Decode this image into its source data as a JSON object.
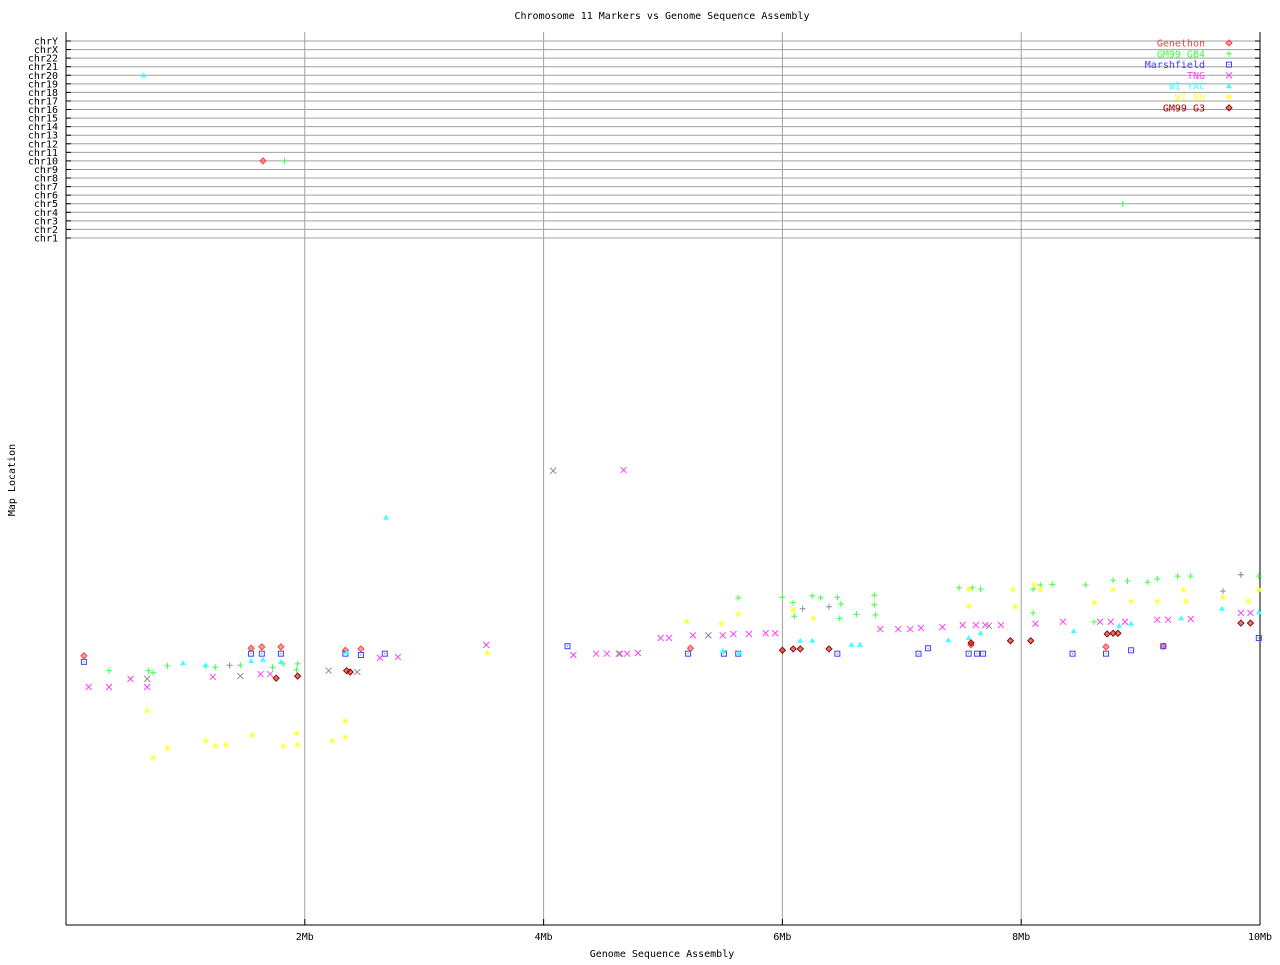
{
  "chart_data": {
    "type": "scatter",
    "title": "Chromosome 11 Markers vs Genome Sequence Assembly",
    "xlabel": "Genome Sequence Assembly",
    "ylabel": "Map Location",
    "xlim": [
      0,
      10
    ],
    "x_unit": "Mb",
    "x_ticks": [
      {
        "value": 2,
        "label": "2Mb"
      },
      {
        "value": 4,
        "label": "4Mb"
      },
      {
        "value": 6,
        "label": "6Mb"
      },
      {
        "value": 8,
        "label": "8Mb"
      },
      {
        "value": 10,
        "label": "10Mb"
      }
    ],
    "ylim": [
      0,
      100
    ],
    "chromosome_labels": [
      "chr1",
      "chr2",
      "chr3",
      "chr4",
      "chr5",
      "chr6",
      "chr7",
      "chr8",
      "chr9",
      "chr10",
      "chr11",
      "chr12",
      "chr13",
      "chr14",
      "chr15",
      "chr16",
      "chr17",
      "chr18",
      "chr19",
      "chr20",
      "chr21",
      "chr22",
      "chrX",
      "chrY"
    ],
    "grid": true,
    "legend_position": "top-right",
    "series": [
      {
        "name": "Genethon",
        "color": "#ff4040",
        "marker": "diamond",
        "points": [
          [
            0.15,
            39.6
          ],
          [
            1.55,
            40.7
          ],
          [
            1.64,
            40.9
          ],
          [
            1.8,
            40.9
          ],
          [
            2.34,
            40.4
          ],
          [
            2.47,
            40.6
          ],
          [
            5.23,
            40.7
          ],
          [
            7.58,
            41.2
          ],
          [
            8.71,
            40.9
          ],
          [
            9.19,
            41.0
          ]
        ],
        "other_chr": [
          [
            1.65,
            "chr10"
          ]
        ]
      },
      {
        "name": "GM99 GB4",
        "color": "#40ff40",
        "marker": "plus",
        "points": [
          [
            0.36,
            37.4
          ],
          [
            0.69,
            37.4
          ],
          [
            0.73,
            37.1
          ],
          [
            0.85,
            38.1
          ],
          [
            1.17,
            38.1
          ],
          [
            1.25,
            37.9
          ],
          [
            1.46,
            38.2
          ],
          [
            1.73,
            37.9
          ],
          [
            1.82,
            38.4
          ],
          [
            1.94,
            38.4
          ],
          [
            1.93,
            37.5
          ],
          [
            5.63,
            48.1
          ],
          [
            6.0,
            48.2
          ],
          [
            6.09,
            47.4
          ],
          [
            6.25,
            48.4
          ],
          [
            6.32,
            48.1
          ],
          [
            6.46,
            48.2
          ],
          [
            6.49,
            47.2
          ],
          [
            6.77,
            48.5
          ],
          [
            6.77,
            47.1
          ],
          [
            6.1,
            45.4
          ],
          [
            6.48,
            45.1
          ],
          [
            6.62,
            45.7
          ],
          [
            6.78,
            45.6
          ],
          [
            7.48,
            49.6
          ],
          [
            7.59,
            49.6
          ],
          [
            7.66,
            49.4
          ],
          [
            8.1,
            49.4
          ],
          [
            8.16,
            50.0
          ],
          [
            8.26,
            50.1
          ],
          [
            8.54,
            50.0
          ],
          [
            8.77,
            50.7
          ],
          [
            8.89,
            50.6
          ],
          [
            9.06,
            50.4
          ],
          [
            9.14,
            50.9
          ],
          [
            9.31,
            51.3
          ],
          [
            9.42,
            51.3
          ],
          [
            9.84,
            51.5
          ],
          [
            9.99,
            51.3
          ],
          [
            8.1,
            45.9
          ],
          [
            8.61,
            44.6
          ]
        ],
        "other_chr": [
          [
            1.83,
            "chr10"
          ],
          [
            8.85,
            "chr5"
          ]
        ]
      },
      {
        "name": "Marshfield",
        "color": "#4040ff",
        "marker": "square",
        "points": [
          [
            0.15,
            38.7
          ],
          [
            1.55,
            39.9
          ],
          [
            1.64,
            39.9
          ],
          [
            1.8,
            39.9
          ],
          [
            2.34,
            39.9
          ],
          [
            2.47,
            39.7
          ],
          [
            2.67,
            39.9
          ],
          [
            4.2,
            41.0
          ],
          [
            5.21,
            39.9
          ],
          [
            5.51,
            39.9
          ],
          [
            5.63,
            39.9
          ],
          [
            6.46,
            39.9
          ],
          [
            7.14,
            39.9
          ],
          [
            7.22,
            40.7
          ],
          [
            7.56,
            39.9
          ],
          [
            7.63,
            39.9
          ],
          [
            7.68,
            39.9
          ],
          [
            8.43,
            39.9
          ],
          [
            8.71,
            39.9
          ],
          [
            8.92,
            40.4
          ],
          [
            9.19,
            41.0
          ],
          [
            9.99,
            42.2
          ]
        ],
        "other_chr": []
      },
      {
        "name": "TNG",
        "color": "#ff40ff",
        "marker": "cross",
        "points": [
          [
            0.19,
            35.0
          ],
          [
            0.36,
            35.0
          ],
          [
            0.54,
            36.2
          ],
          [
            0.68,
            35.0
          ],
          [
            1.23,
            36.5
          ],
          [
            1.63,
            36.9
          ],
          [
            1.71,
            36.9
          ],
          [
            2.63,
            39.3
          ],
          [
            2.78,
            39.4
          ],
          [
            3.52,
            41.2
          ],
          [
            4.25,
            39.7
          ],
          [
            4.44,
            39.9
          ],
          [
            4.53,
            39.9
          ],
          [
            4.64,
            39.9
          ],
          [
            4.7,
            39.9
          ],
          [
            4.79,
            40.0
          ],
          [
            4.98,
            42.2
          ],
          [
            5.05,
            42.2
          ],
          [
            5.25,
            42.6
          ],
          [
            5.38,
            42.6
          ],
          [
            5.5,
            42.6
          ],
          [
            5.59,
            42.8
          ],
          [
            5.72,
            42.8
          ],
          [
            5.86,
            42.9
          ],
          [
            5.94,
            42.9
          ],
          [
            6.82,
            43.5
          ],
          [
            6.97,
            43.5
          ],
          [
            7.07,
            43.5
          ],
          [
            7.16,
            43.7
          ],
          [
            7.34,
            43.8
          ],
          [
            7.51,
            44.1
          ],
          [
            7.62,
            44.1
          ],
          [
            7.7,
            44.1
          ],
          [
            7.83,
            44.1
          ],
          [
            8.12,
            44.3
          ],
          [
            8.35,
            44.6
          ],
          [
            8.66,
            44.6
          ],
          [
            8.75,
            44.6
          ],
          [
            8.87,
            44.6
          ],
          [
            9.14,
            44.9
          ],
          [
            9.23,
            44.9
          ],
          [
            9.42,
            45.0
          ],
          [
            9.84,
            45.9
          ],
          [
            9.92,
            45.9
          ],
          [
            4.67,
            66.9
          ]
        ],
        "other_chr": []
      },
      {
        "name": "WI YAC",
        "color": "#40ffff",
        "marker": "triangle",
        "points": [
          [
            0.98,
            38.5
          ],
          [
            1.17,
            38.2
          ],
          [
            1.55,
            38.8
          ],
          [
            1.65,
            39.0
          ],
          [
            1.8,
            38.7
          ],
          [
            2.35,
            40.1
          ],
          [
            2.68,
            59.9
          ],
          [
            5.5,
            40.3
          ],
          [
            5.64,
            40.0
          ],
          [
            6.15,
            41.8
          ],
          [
            6.25,
            41.8
          ],
          [
            6.58,
            41.2
          ],
          [
            6.65,
            41.2
          ],
          [
            7.39,
            41.9
          ],
          [
            7.56,
            42.2
          ],
          [
            7.66,
            42.9
          ],
          [
            8.44,
            43.2
          ],
          [
            8.82,
            44.0
          ],
          [
            8.92,
            44.3
          ],
          [
            9.34,
            45.1
          ],
          [
            9.68,
            46.5
          ],
          [
            9.99,
            46.0
          ]
        ],
        "other_chr": [
          [
            0.65,
            "chr20"
          ]
        ]
      },
      {
        "name": "WI RH",
        "color": "#ffff40",
        "marker": "star",
        "points": [
          [
            0.68,
            31.5
          ],
          [
            0.73,
            24.6
          ],
          [
            0.85,
            26.0
          ],
          [
            1.17,
            27.1
          ],
          [
            1.25,
            26.3
          ],
          [
            1.34,
            26.5
          ],
          [
            1.56,
            27.9
          ],
          [
            1.82,
            26.3
          ],
          [
            1.93,
            28.2
          ],
          [
            1.94,
            26.5
          ],
          [
            2.23,
            27.1
          ],
          [
            2.34,
            30.0
          ],
          [
            2.34,
            27.6
          ],
          [
            3.53,
            40.0
          ],
          [
            5.2,
            44.6
          ],
          [
            5.49,
            44.3
          ],
          [
            5.63,
            45.7
          ],
          [
            6.09,
            46.3
          ],
          [
            6.26,
            45.1
          ],
          [
            7.56,
            49.4
          ],
          [
            7.56,
            46.9
          ],
          [
            7.93,
            49.3
          ],
          [
            7.95,
            46.8
          ],
          [
            8.11,
            50.0
          ],
          [
            8.16,
            49.3
          ],
          [
            8.61,
            47.4
          ],
          [
            8.77,
            49.3
          ],
          [
            8.92,
            47.6
          ],
          [
            9.14,
            47.6
          ],
          [
            9.36,
            49.3
          ],
          [
            9.38,
            47.6
          ],
          [
            9.69,
            48.2
          ],
          [
            9.9,
            47.6
          ],
          [
            9.99,
            49.3
          ]
        ],
        "other_chr": []
      },
      {
        "name": "GM99 G3",
        "color": "#a00000",
        "marker": "diamond",
        "points": [
          [
            1.76,
            36.3
          ],
          [
            1.94,
            36.6
          ],
          [
            2.35,
            37.4
          ],
          [
            2.38,
            37.2
          ],
          [
            6.0,
            40.4
          ],
          [
            6.09,
            40.6
          ],
          [
            6.15,
            40.6
          ],
          [
            6.39,
            40.6
          ],
          [
            7.58,
            41.5
          ],
          [
            7.91,
            41.8
          ],
          [
            8.08,
            41.8
          ],
          [
            8.72,
            42.8
          ],
          [
            8.77,
            42.9
          ],
          [
            8.81,
            42.9
          ],
          [
            9.84,
            44.4
          ],
          [
            9.92,
            44.4
          ]
        ],
        "other_chr": []
      },
      {
        "color": "#909090",
        "marker": "cross",
        "points": [
          [
            4.08,
            66.8
          ],
          [
            0.68,
            36.2
          ],
          [
            1.46,
            36.6
          ],
          [
            2.2,
            37.4
          ],
          [
            2.44,
            37.2
          ],
          [
            4.63,
            39.9
          ],
          [
            5.38,
            42.6
          ],
          [
            7.73,
            44.0
          ]
        ],
        "other_chr": []
      },
      {
        "color": "#909090",
        "marker": "plus",
        "points": [
          [
            1.37,
            38.2
          ],
          [
            6.17,
            46.5
          ],
          [
            6.39,
            46.8
          ],
          [
            9.69,
            49.1
          ],
          [
            9.84,
            51.5
          ]
        ],
        "other_chr": []
      }
    ]
  }
}
